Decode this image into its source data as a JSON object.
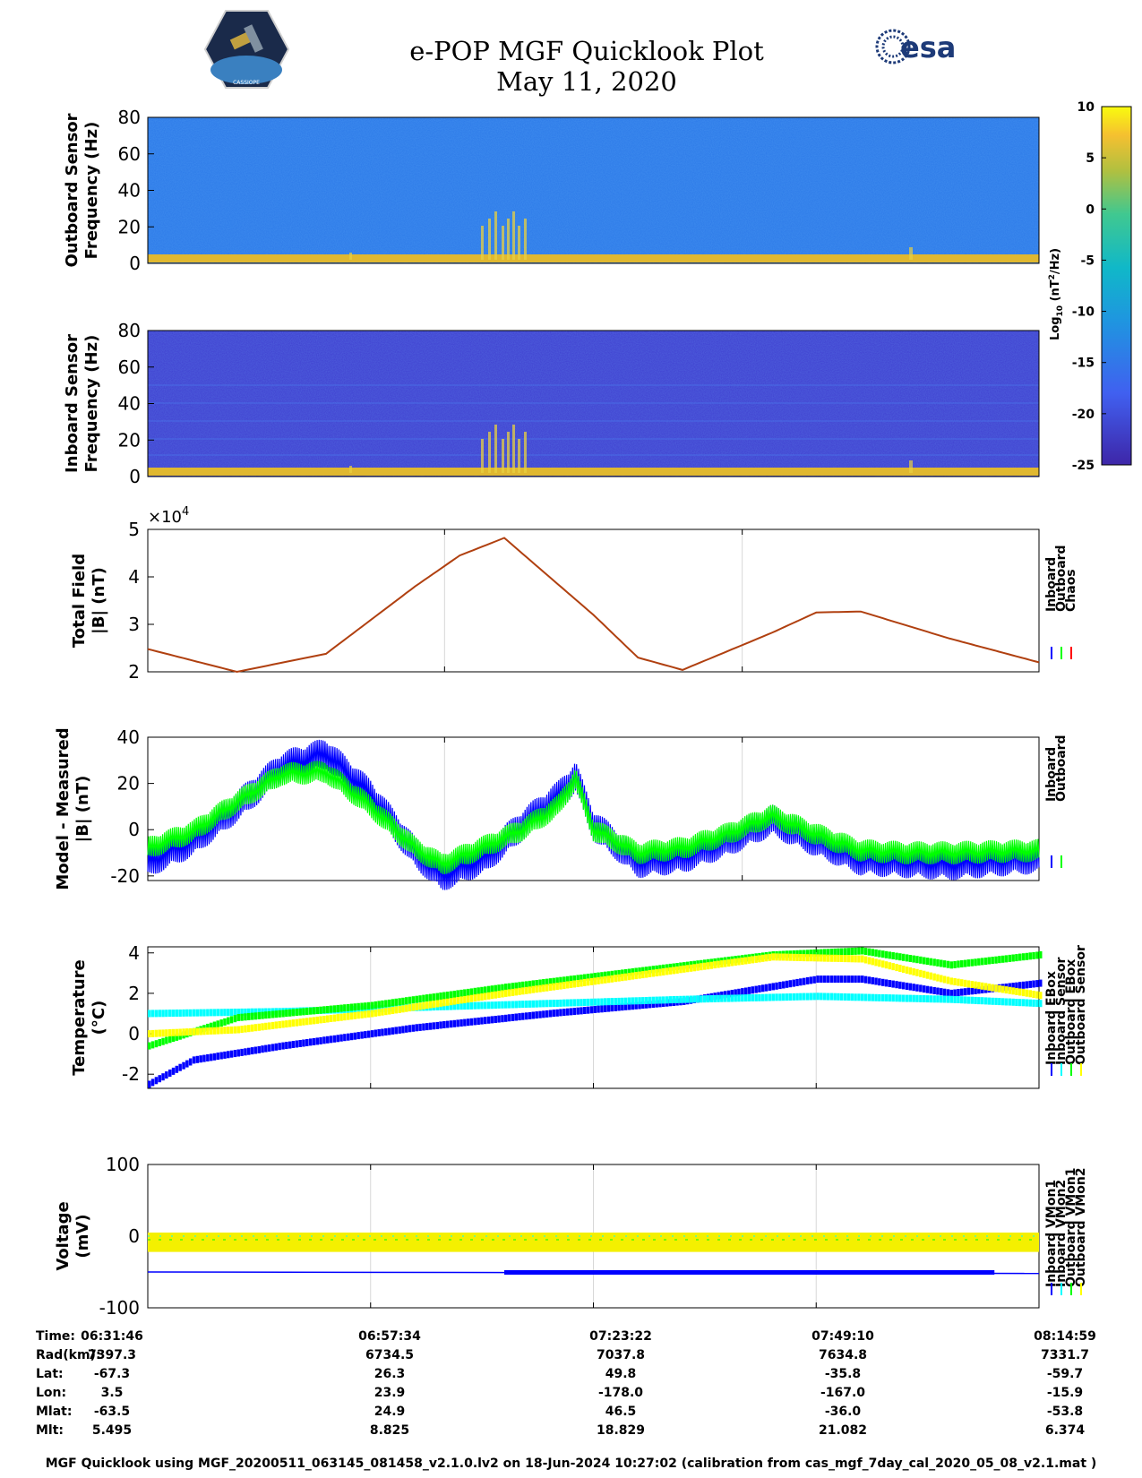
{
  "title": {
    "line1": "e-POP MGF Quicklook Plot",
    "line2": "May 11, 2020"
  },
  "logos": {
    "left_caption": "CASSIOPE",
    "esa": "esa"
  },
  "colors": {
    "inboard": "#0000ff",
    "outboard": "#00ff00",
    "chaos": "#ff0000",
    "eboxIn": "#0000ff",
    "sensorIn": "#00ffff",
    "eboxOut": "#00ff00",
    "sensorOut": "#ffff00",
    "trace": "#b04010"
  },
  "chart_data": [
    {
      "type": "heatmap",
      "id": "spec-out",
      "ylabel": "Outboard Sensor\nFrequency (Hz)",
      "ylim": [
        0,
        80
      ],
      "yticks": [
        "80",
        "60",
        "40",
        "20",
        "0"
      ]
    },
    {
      "type": "heatmap",
      "id": "spec-in",
      "ylabel": "Inboard Sensor\nFrequency (Hz)",
      "ylim": [
        0,
        80
      ],
      "yticks": [
        "80",
        "60",
        "40",
        "20",
        "0"
      ]
    },
    {
      "type": "colorbar",
      "id": "colorbar",
      "label": "Log10 (nT2/Hz)",
      "label_main": "Log",
      "label_sub": "10",
      "label_rest": " (nT",
      "label_sup": "2",
      "label_end": "/Hz)",
      "ylim": [
        -25,
        10
      ],
      "ticks": [
        "10",
        "5",
        "0",
        "-5",
        "-10",
        "-15",
        "-20",
        "-25"
      ]
    },
    {
      "type": "line",
      "id": "total-field",
      "ylabel": "Total Field\n|B| (nT)",
      "ylim": [
        2,
        5
      ],
      "yticks": [
        "5",
        "4",
        "3",
        "2"
      ],
      "multiplier": "×10",
      "multiplier_exp": "4",
      "legend": [
        "Inboard",
        "Outboard",
        "Chaos"
      ],
      "series": [
        {
          "name": "Chaos",
          "x": [
            0,
            0.1,
            0.2,
            0.3,
            0.35,
            0.4,
            0.5,
            0.55,
            0.6,
            0.7,
            0.75,
            0.8,
            0.9,
            1.0
          ],
          "values": [
            2.48,
            2.0,
            2.38,
            3.8,
            4.45,
            4.82,
            3.2,
            2.3,
            2.04,
            2.82,
            3.25,
            3.27,
            2.7,
            2.2
          ]
        }
      ]
    },
    {
      "type": "line",
      "id": "model-measured",
      "ylabel": "Model - Measured\n|B| (nT)",
      "ylim": [
        -22,
        40
      ],
      "yticks": [
        "40",
        "20",
        "0",
        "-20"
      ],
      "legend": [
        "Inboard",
        "Outboard"
      ],
      "series": [
        {
          "name": "Inboard",
          "x": [
            0,
            0.05,
            0.1,
            0.15,
            0.2,
            0.25,
            0.3,
            0.33,
            0.38,
            0.42,
            0.46,
            0.48,
            0.5,
            0.55,
            0.6,
            0.65,
            0.7,
            0.75,
            0.8,
            0.85,
            0.9,
            1.0
          ],
          "values": [
            -14,
            -5,
            10,
            27,
            33,
            15,
            -10,
            -20,
            -12,
            2,
            14,
            23,
            2,
            -14,
            -12,
            -5,
            4,
            -5,
            -13,
            -14,
            -15,
            -12
          ]
        },
        {
          "name": "Outboard",
          "x": [
            0,
            0.05,
            0.1,
            0.15,
            0.2,
            0.25,
            0.3,
            0.33,
            0.38,
            0.42,
            0.46,
            0.48,
            0.5,
            0.55,
            0.6,
            0.65,
            0.7,
            0.75,
            0.8,
            0.85,
            0.9,
            1.0
          ],
          "values": [
            -8,
            -1,
            12,
            24,
            25,
            10,
            -8,
            -15,
            -7,
            0,
            10,
            22,
            0,
            -10,
            -8,
            -2,
            6,
            -2,
            -9,
            -10,
            -10,
            -9
          ]
        }
      ]
    },
    {
      "type": "scatter",
      "id": "temperature",
      "ylabel": "Temperature\n(°C)",
      "ylim": [
        -2.7,
        4.3
      ],
      "yticks": [
        "4",
        "2",
        "0",
        "-2"
      ],
      "legend": [
        "Inboard EBox",
        "Inboard Sensor",
        "Outboard EBox",
        "Outboard Sensor"
      ],
      "series": [
        {
          "name": "Inboard EBox",
          "x": [
            0,
            0.05,
            0.15,
            0.3,
            0.45,
            0.6,
            0.75,
            0.8,
            0.9,
            1.0
          ],
          "values": [
            -2.5,
            -1.3,
            -0.6,
            0.3,
            1.0,
            1.6,
            2.7,
            2.7,
            2.0,
            2.5
          ]
        },
        {
          "name": "Inboard Sensor",
          "x": [
            0,
            0.15,
            0.3,
            0.45,
            0.6,
            0.75,
            0.9,
            1.0
          ],
          "values": [
            1.0,
            1.1,
            1.3,
            1.5,
            1.7,
            1.85,
            1.7,
            1.5
          ]
        },
        {
          "name": "Outboard EBox",
          "x": [
            0,
            0.1,
            0.25,
            0.4,
            0.55,
            0.7,
            0.8,
            0.9,
            1.0
          ],
          "values": [
            -0.6,
            0.8,
            1.4,
            2.3,
            3.1,
            3.9,
            4.1,
            3.4,
            3.9
          ]
        },
        {
          "name": "Outboard Sensor",
          "x": [
            0,
            0.1,
            0.25,
            0.4,
            0.55,
            0.7,
            0.8,
            0.9,
            1.0
          ],
          "values": [
            0.0,
            0.2,
            1.0,
            2.0,
            2.9,
            3.8,
            3.7,
            2.6,
            1.9
          ]
        }
      ]
    },
    {
      "type": "scatter",
      "id": "voltage",
      "ylabel": "Voltage\n(mV)",
      "ylim": [
        -100,
        100
      ],
      "yticks": [
        "100",
        "0",
        "-100"
      ],
      "legend": [
        "Inboard VMon1",
        "Inboard VMon2",
        "Outboard VMon1",
        "Outboard VMon2"
      ],
      "series": [
        {
          "name": "Inboard VMon1",
          "x": [
            0,
            1
          ],
          "values": [
            -50,
            -52
          ]
        },
        {
          "name": "Inboard VMon2",
          "x": [
            0,
            1
          ],
          "values": [
            0,
            0
          ]
        },
        {
          "name": "Outboard VMon1",
          "x": [
            0,
            1
          ],
          "values": [
            -5,
            -5
          ]
        },
        {
          "name": "Outboard VMon2",
          "x": [
            0,
            1
          ],
          "values": [
            -10,
            -10
          ]
        }
      ]
    }
  ],
  "info": {
    "labels": [
      "Time:",
      "Rad(km):",
      "Lat:",
      "Lon:",
      "Mlat:",
      "Mlt:"
    ],
    "columns": [
      [
        "06:31:46",
        "7397.3",
        "-67.3",
        "3.5",
        "-63.5",
        "5.495"
      ],
      [
        "06:57:34",
        "6734.5",
        "26.3",
        "23.9",
        "24.9",
        "8.825"
      ],
      [
        "07:23:22",
        "7037.8",
        "49.8",
        "-178.0",
        "46.5",
        "18.829"
      ],
      [
        "07:49:10",
        "7634.8",
        "-35.8",
        "-167.0",
        "-36.0",
        "21.082"
      ],
      [
        "08:14:59",
        "7331.7",
        "-59.7",
        "-15.9",
        "-53.8",
        "6.374"
      ]
    ]
  },
  "footer": "MGF Quicklook using MGF_20200511_063145_081458_v2.1.0.lv2 on 18-Jun-2024 10:27:02 (calibration from cas_mgf_7day_cal_2020_05_08_v2.1.mat )"
}
